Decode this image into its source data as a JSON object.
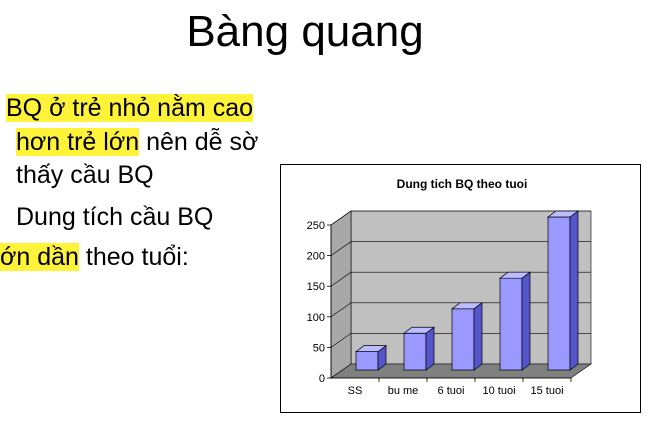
{
  "slide": {
    "title": "Bàng quang",
    "bullets": [
      {
        "parts": [
          {
            "text": "BQ ở trẻ nhỏ nằm cao",
            "highlight": true
          }
        ]
      },
      {
        "parts": [
          {
            "text": "hơn trẻ lớn",
            "highlight": true
          },
          {
            "text": " nên dễ sờ",
            "highlight": false
          }
        ]
      },
      {
        "parts": [
          {
            "text": "thấy cầu BQ",
            "highlight": false
          }
        ]
      },
      {
        "parts": [
          {
            "text": "Dung tích cầu BQ",
            "highlight": false
          }
        ]
      },
      {
        "parts": [
          {
            "text": "ớn dần",
            "highlight": true
          },
          {
            "text": " theo tuổi:",
            "highlight": false
          }
        ]
      }
    ]
  },
  "colors": {
    "highlight": "#fff33a",
    "bar_front": "#9999ff",
    "bar_side": "#5555cc",
    "bar_top": "#bcbcff",
    "wall": "#c0c0c0",
    "floor": "#808080"
  },
  "chart_data": {
    "type": "bar",
    "title": "Dung tich BQ theo tuoi",
    "categories": [
      "SS",
      "bu me",
      "6 tuoi",
      "10 tuoi",
      "15 tuoi"
    ],
    "values": [
      30,
      60,
      100,
      150,
      250
    ],
    "ylim": [
      0,
      250
    ],
    "yticks": [
      "0",
      "50",
      "100",
      "150",
      "200",
      "250"
    ],
    "grid": true,
    "legend": "none",
    "three_d": true
  }
}
